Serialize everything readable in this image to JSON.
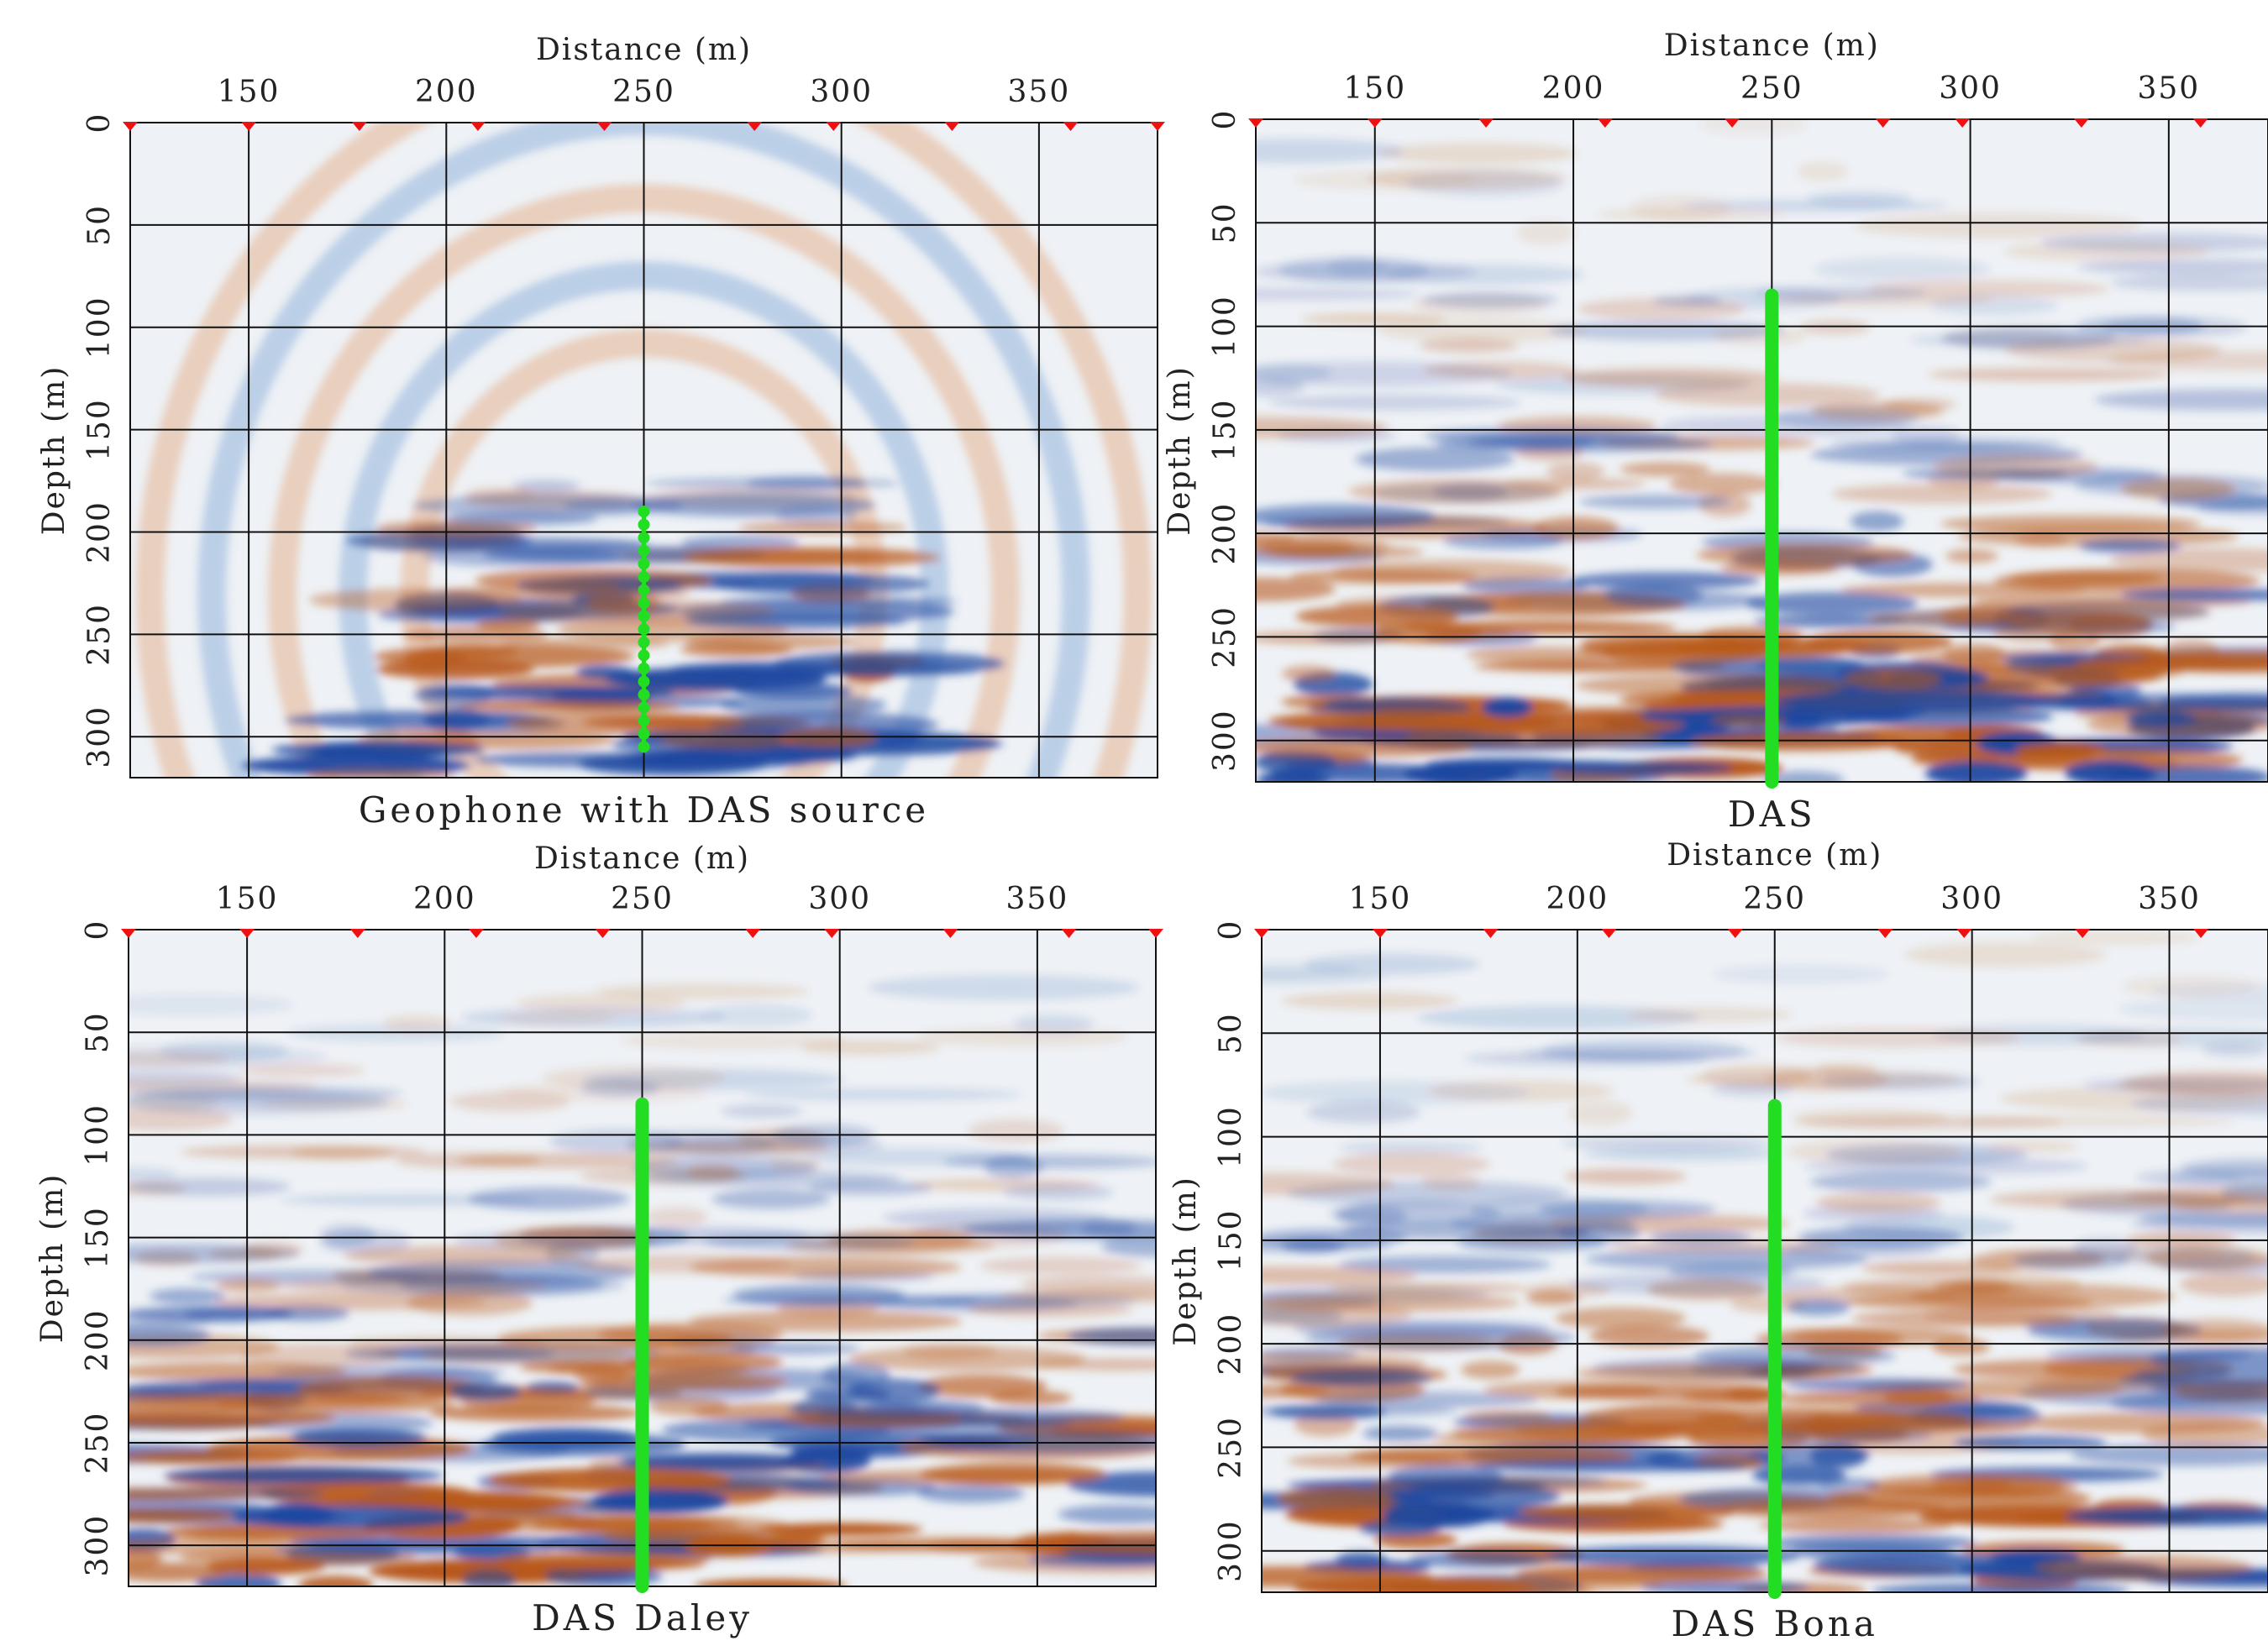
{
  "chart_data": [
    {
      "type": "image",
      "title": "Geophone with DAS source",
      "xlabel": "Distance (m)",
      "ylabel": "Depth (m)",
      "xlim": [
        120,
        380
      ],
      "ylim": [
        0,
        320
      ],
      "xticks": [
        150,
        200,
        250,
        300,
        350
      ],
      "yticks": [
        0,
        50,
        100,
        150,
        200,
        250,
        300
      ],
      "grid": true,
      "sources_x": [
        120,
        150,
        178,
        208,
        240,
        278,
        298,
        328,
        358,
        380
      ],
      "source_color": "#ee1111",
      "well": {
        "x": 250,
        "top": 190,
        "bottom": 305,
        "style": "dots",
        "color": "#22dd22"
      }
    },
    {
      "type": "image",
      "title": "DAS",
      "xlabel": "Distance (m)",
      "ylabel": "Depth (m)",
      "xlim": [
        120,
        375
      ],
      "ylim": [
        0,
        320
      ],
      "xticks": [
        150,
        200,
        250,
        300,
        350
      ],
      "yticks": [
        0,
        50,
        100,
        150,
        200,
        250,
        300
      ],
      "grid": true,
      "sources_x": [
        120,
        150,
        178,
        208,
        240,
        278,
        298,
        328,
        358
      ],
      "source_color": "#ee1111",
      "well": {
        "x": 250,
        "top": 85,
        "bottom": 320,
        "style": "line",
        "color": "#22dd22"
      }
    },
    {
      "type": "image",
      "title": "DAS Daley",
      "xlabel": "Distance (m)",
      "ylabel": "Depth (m)",
      "xlim": [
        120,
        380
      ],
      "ylim": [
        0,
        320
      ],
      "xticks": [
        150,
        200,
        250,
        300,
        350
      ],
      "yticks": [
        0,
        50,
        100,
        150,
        200,
        250,
        300
      ],
      "grid": true,
      "sources_x": [
        120,
        150,
        178,
        208,
        240,
        278,
        298,
        328,
        358,
        380
      ],
      "source_color": "#ee1111",
      "well": {
        "x": 250,
        "top": 85,
        "bottom": 320,
        "style": "line",
        "color": "#22dd22"
      }
    },
    {
      "type": "image",
      "title": "DAS Bona",
      "xlabel": "Distance (m)",
      "ylabel": "Depth (m)",
      "xlim": [
        120,
        375
      ],
      "ylim": [
        0,
        320
      ],
      "xticks": [
        150,
        200,
        250,
        300,
        350
      ],
      "yticks": [
        0,
        50,
        100,
        150,
        200,
        250,
        300
      ],
      "grid": true,
      "sources_x": [
        120,
        150,
        178,
        208,
        240,
        278,
        298,
        328,
        358
      ],
      "source_color": "#ee1111",
      "well": {
        "x": 250,
        "top": 85,
        "bottom": 320,
        "style": "line",
        "color": "#22dd22"
      }
    }
  ]
}
